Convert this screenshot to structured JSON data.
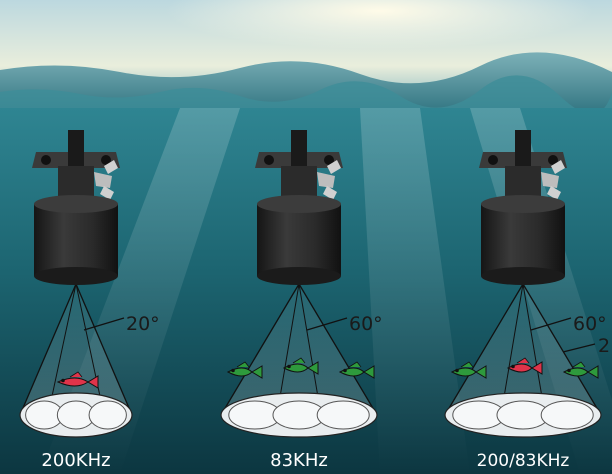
{
  "transducers": [
    {
      "frequency": "200KHz",
      "angles": [
        "20°"
      ],
      "fish": [
        "red"
      ]
    },
    {
      "frequency": "83KHz",
      "angles": [
        "60°"
      ],
      "fish": [
        "green",
        "green",
        "green"
      ]
    },
    {
      "frequency": "200/83KHz",
      "angles": [
        "60°",
        "2"
      ],
      "fish": [
        "green",
        "red",
        "green"
      ]
    }
  ],
  "colors": {
    "sky": "#cfe4ea",
    "water_top": "#2d7f8c",
    "water_bottom": "#0d3a44",
    "transducer": "#2a2a2a",
    "fish_red": "#e0344a",
    "fish_green": "#2e9a3c"
  }
}
